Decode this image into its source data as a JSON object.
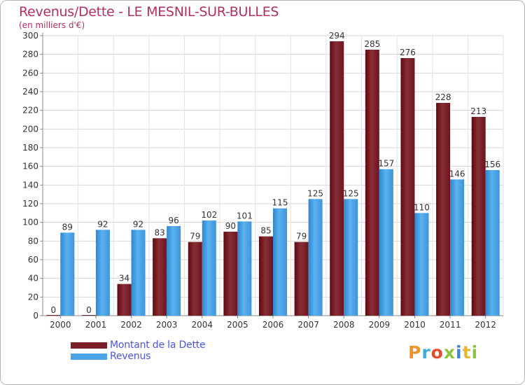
{
  "header": {
    "title": "Revenus/Dette - LE MESNIL-SUR-BULLES",
    "subtitle": "(en milliers d'€)"
  },
  "legend": {
    "items": [
      {
        "label": "Montant de la Dette",
        "color": "#7a1f26"
      },
      {
        "label": "Revenus",
        "color": "#4aa3e6"
      }
    ]
  },
  "brand": {
    "text": "Proxiti",
    "letter_colors": [
      "#f0932b",
      "#3ab0d8",
      "#e84a2f",
      "#8cc63f",
      "#3a86d8",
      "#e8b62f",
      "#8cc63f"
    ]
  },
  "chart_data": {
    "type": "bar",
    "categories": [
      "2000",
      "2001",
      "2002",
      "2003",
      "2004",
      "2005",
      "2006",
      "2007",
      "2008",
      "2009",
      "2010",
      "2011",
      "2012"
    ],
    "series": [
      {
        "name": "Montant de la Dette",
        "values": [
          0,
          0,
          34,
          83,
          79,
          90,
          85,
          79,
          294,
          285,
          276,
          228,
          213
        ],
        "color": "#7a1f26"
      },
      {
        "name": "Revenus",
        "values": [
          89,
          92,
          92,
          96,
          102,
          101,
          115,
          125,
          125,
          157,
          110,
          146,
          156
        ],
        "color": "#4aa3e6"
      }
    ],
    "ylim": [
      0,
      300
    ],
    "yticks": [
      0,
      20,
      40,
      60,
      80,
      100,
      120,
      140,
      160,
      180,
      200,
      220,
      240,
      260,
      280,
      300
    ],
    "grid": true,
    "legend_position": "bottom-left"
  }
}
